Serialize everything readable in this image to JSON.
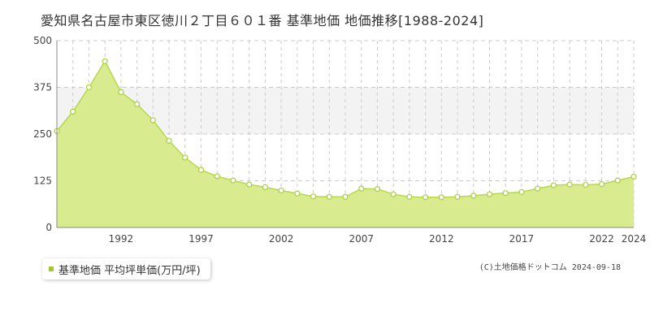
{
  "title": "愛知県名古屋市東区徳川２丁目６０１番 基準地価 地価推移[1988-2024]",
  "legend": {
    "label": "基準地価 平均坪単価(万円/坪)"
  },
  "copyright": "(C)土地価格ドットコム 2024-09-18",
  "colors": {
    "fill": "#d8eb8f",
    "line": "#b5d84e",
    "marker_stroke": "#a8cf3c",
    "grid": "#cccccc",
    "band": "#f3f3f3",
    "legend_marker": "#a0c832"
  },
  "chart_data": {
    "type": "area",
    "x": [
      1988,
      1989,
      1990,
      1991,
      1992,
      1993,
      1994,
      1995,
      1996,
      1997,
      1998,
      1999,
      2000,
      2001,
      2002,
      2003,
      2004,
      2005,
      2006,
      2007,
      2008,
      2009,
      2010,
      2011,
      2012,
      2013,
      2014,
      2015,
      2016,
      2017,
      2018,
      2019,
      2020,
      2021,
      2022,
      2023,
      2024
    ],
    "values": [
      258,
      310,
      375,
      445,
      362,
      330,
      287,
      232,
      187,
      154,
      137,
      126,
      115,
      108,
      99,
      91,
      83,
      82,
      82,
      104,
      103,
      89,
      82,
      81,
      81,
      82,
      85,
      89,
      92,
      95,
      104,
      113,
      115,
      114,
      116,
      126,
      136
    ],
    "xticks": [
      1992,
      1997,
      2002,
      2007,
      2012,
      2017,
      2022,
      2024
    ],
    "yticks": [
      0,
      125,
      250,
      375,
      500
    ],
    "xlim": [
      1988,
      2024
    ],
    "ylim": [
      0,
      500
    ],
    "xlabel": "",
    "ylabel": "",
    "grid": true
  }
}
